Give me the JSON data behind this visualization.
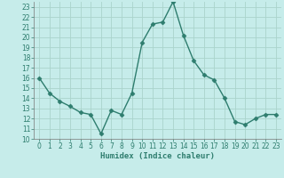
{
  "xlabel": "Humidex (Indice chaleur)",
  "x": [
    0,
    1,
    2,
    3,
    4,
    5,
    6,
    7,
    8,
    9,
    10,
    11,
    12,
    13,
    14,
    15,
    16,
    17,
    18,
    19,
    20,
    21,
    22,
    23
  ],
  "y": [
    16,
    14.5,
    13.7,
    13.2,
    12.6,
    12.4,
    10.5,
    12.8,
    12.4,
    14.5,
    19.5,
    21.3,
    21.5,
    23.5,
    20.2,
    17.7,
    16.3,
    15.8,
    14.0,
    11.7,
    11.4,
    12.0,
    12.4,
    12.4
  ],
  "line_color": "#2e7d6e",
  "marker": "D",
  "marker_size": 2.5,
  "bg_color": "#c6ecea",
  "grid_color": "#aad4cc",
  "text_color": "#2e7d6e",
  "ylim": [
    10,
    23.5
  ],
  "xlim": [
    -0.5,
    23.5
  ],
  "yticks": [
    10,
    11,
    12,
    13,
    14,
    15,
    16,
    17,
    18,
    19,
    20,
    21,
    22,
    23
  ],
  "xticks": [
    0,
    1,
    2,
    3,
    4,
    5,
    6,
    7,
    8,
    9,
    10,
    11,
    12,
    13,
    14,
    15,
    16,
    17,
    18,
    19,
    20,
    21,
    22,
    23
  ],
  "tick_fontsize": 5.5,
  "xlabel_fontsize": 6.5,
  "linewidth": 1.0
}
